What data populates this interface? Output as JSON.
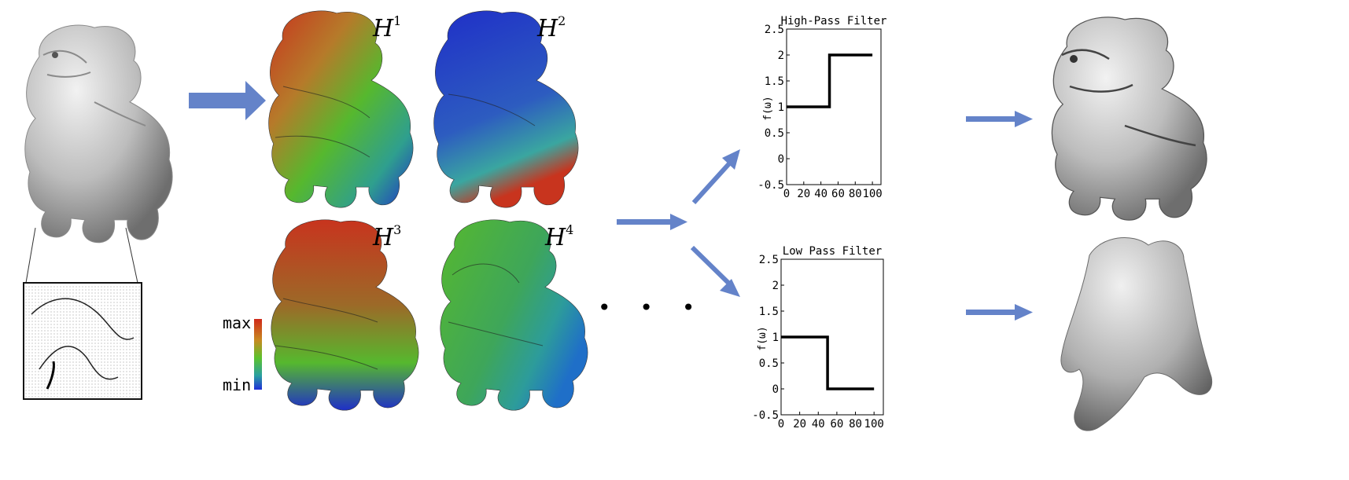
{
  "figure": {
    "harmonic_labels": [
      "H",
      "H",
      "H",
      "H"
    ],
    "harmonic_indices": [
      "1",
      "2",
      "3",
      "4"
    ],
    "colorbar": {
      "max_label": "max",
      "min_label": "min"
    },
    "ellipsis": "• • •",
    "colors": {
      "arrow": "#6483c9",
      "mesh_gray": "#b9b9b9",
      "heat_red": "#c8341e",
      "heat_green": "#56b82e",
      "heat_blue": "#1f2fc8"
    },
    "icons": [
      "arrow-right-icon",
      "arrow-diagonal-up-icon",
      "arrow-diagonal-down-icon"
    ]
  },
  "chart_data": [
    {
      "type": "line",
      "title": "High-Pass Filter",
      "xlabel": "",
      "ylabel": "f(ω)",
      "x": [
        0,
        50,
        50,
        100
      ],
      "y": [
        1,
        1,
        2,
        2
      ],
      "xlim": [
        0,
        110
      ],
      "ylim": [
        -0.5,
        2.5
      ],
      "xticks": [
        "0",
        "20",
        "40",
        "60",
        "80",
        "100"
      ],
      "yticks": [
        "2.5",
        "2",
        "1.5",
        "1",
        "0.5",
        "0",
        "-0.5"
      ],
      "grid": false,
      "line_color": "#000000"
    },
    {
      "type": "line",
      "title": "Low Pass Filter",
      "xlabel": "",
      "ylabel": "f(ω)",
      "x": [
        0,
        50,
        50,
        100
      ],
      "y": [
        1,
        1,
        0,
        0
      ],
      "xlim": [
        0,
        110
      ],
      "ylim": [
        -0.5,
        2.5
      ],
      "xticks": [
        "0",
        "20",
        "40",
        "60",
        "80",
        "100"
      ],
      "yticks": [
        "2.5",
        "2",
        "1.5",
        "1",
        "0.5",
        "0",
        "-0.5"
      ],
      "grid": false,
      "line_color": "#000000"
    }
  ]
}
